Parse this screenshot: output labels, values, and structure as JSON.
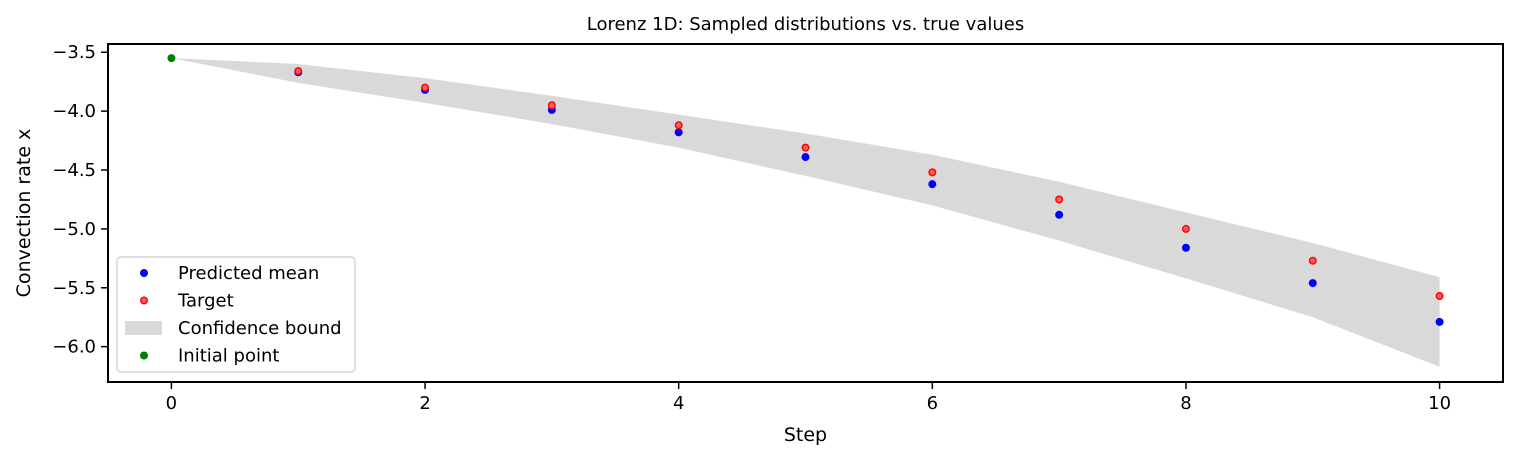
{
  "chart_data": {
    "type": "scatter",
    "title": "Lorenz 1D: Sampled distributions vs. true values",
    "xlabel": "Step",
    "ylabel": "Convection rate x",
    "xlim": [
      -0.5,
      10.5
    ],
    "ylim": [
      -6.3,
      -3.43
    ],
    "xticks": [
      0,
      2,
      4,
      6,
      8,
      10
    ],
    "yticks": [
      -3.5,
      -4.0,
      -4.5,
      -5.0,
      -5.5,
      -6.0
    ],
    "xtick_labels": [
      "0",
      "2",
      "4",
      "6",
      "8",
      "10"
    ],
    "ytick_labels": [
      "−3.5",
      "−4.0",
      "−4.5",
      "−5.0",
      "−5.5",
      "−6.0"
    ],
    "grid": false,
    "legend_position": "lower-left",
    "series": [
      {
        "name": "Predicted mean",
        "kind": "scatter",
        "color": "#0000ff",
        "x": [
          1,
          2,
          3,
          4,
          5,
          6,
          7,
          8,
          9,
          10
        ],
        "y": [
          -3.67,
          -3.82,
          -3.99,
          -4.18,
          -4.39,
          -4.62,
          -4.88,
          -5.16,
          -5.46,
          -5.79
        ]
      },
      {
        "name": "Target",
        "kind": "scatter",
        "color": "#ff0000",
        "x": [
          1,
          2,
          3,
          4,
          5,
          6,
          7,
          8,
          9,
          10
        ],
        "y": [
          -3.66,
          -3.8,
          -3.95,
          -4.12,
          -4.31,
          -4.52,
          -4.75,
          -5.0,
          -5.27,
          -5.57
        ]
      },
      {
        "name": "Confidence bound",
        "kind": "band",
        "color": "#d9d9d9",
        "x": [
          0,
          1,
          2,
          3,
          4,
          5,
          6,
          7,
          8,
          9,
          10
        ],
        "upper": [
          -3.55,
          -3.6,
          -3.72,
          -3.87,
          -4.03,
          -4.19,
          -4.37,
          -4.6,
          -4.86,
          -5.12,
          -5.41
        ],
        "lower": [
          -3.55,
          -3.76,
          -3.93,
          -4.11,
          -4.31,
          -4.55,
          -4.8,
          -5.1,
          -5.42,
          -5.75,
          -6.17
        ]
      },
      {
        "name": "Initial point",
        "kind": "scatter",
        "color": "#008000",
        "x": [
          0
        ],
        "y": [
          -3.55
        ]
      }
    ]
  }
}
